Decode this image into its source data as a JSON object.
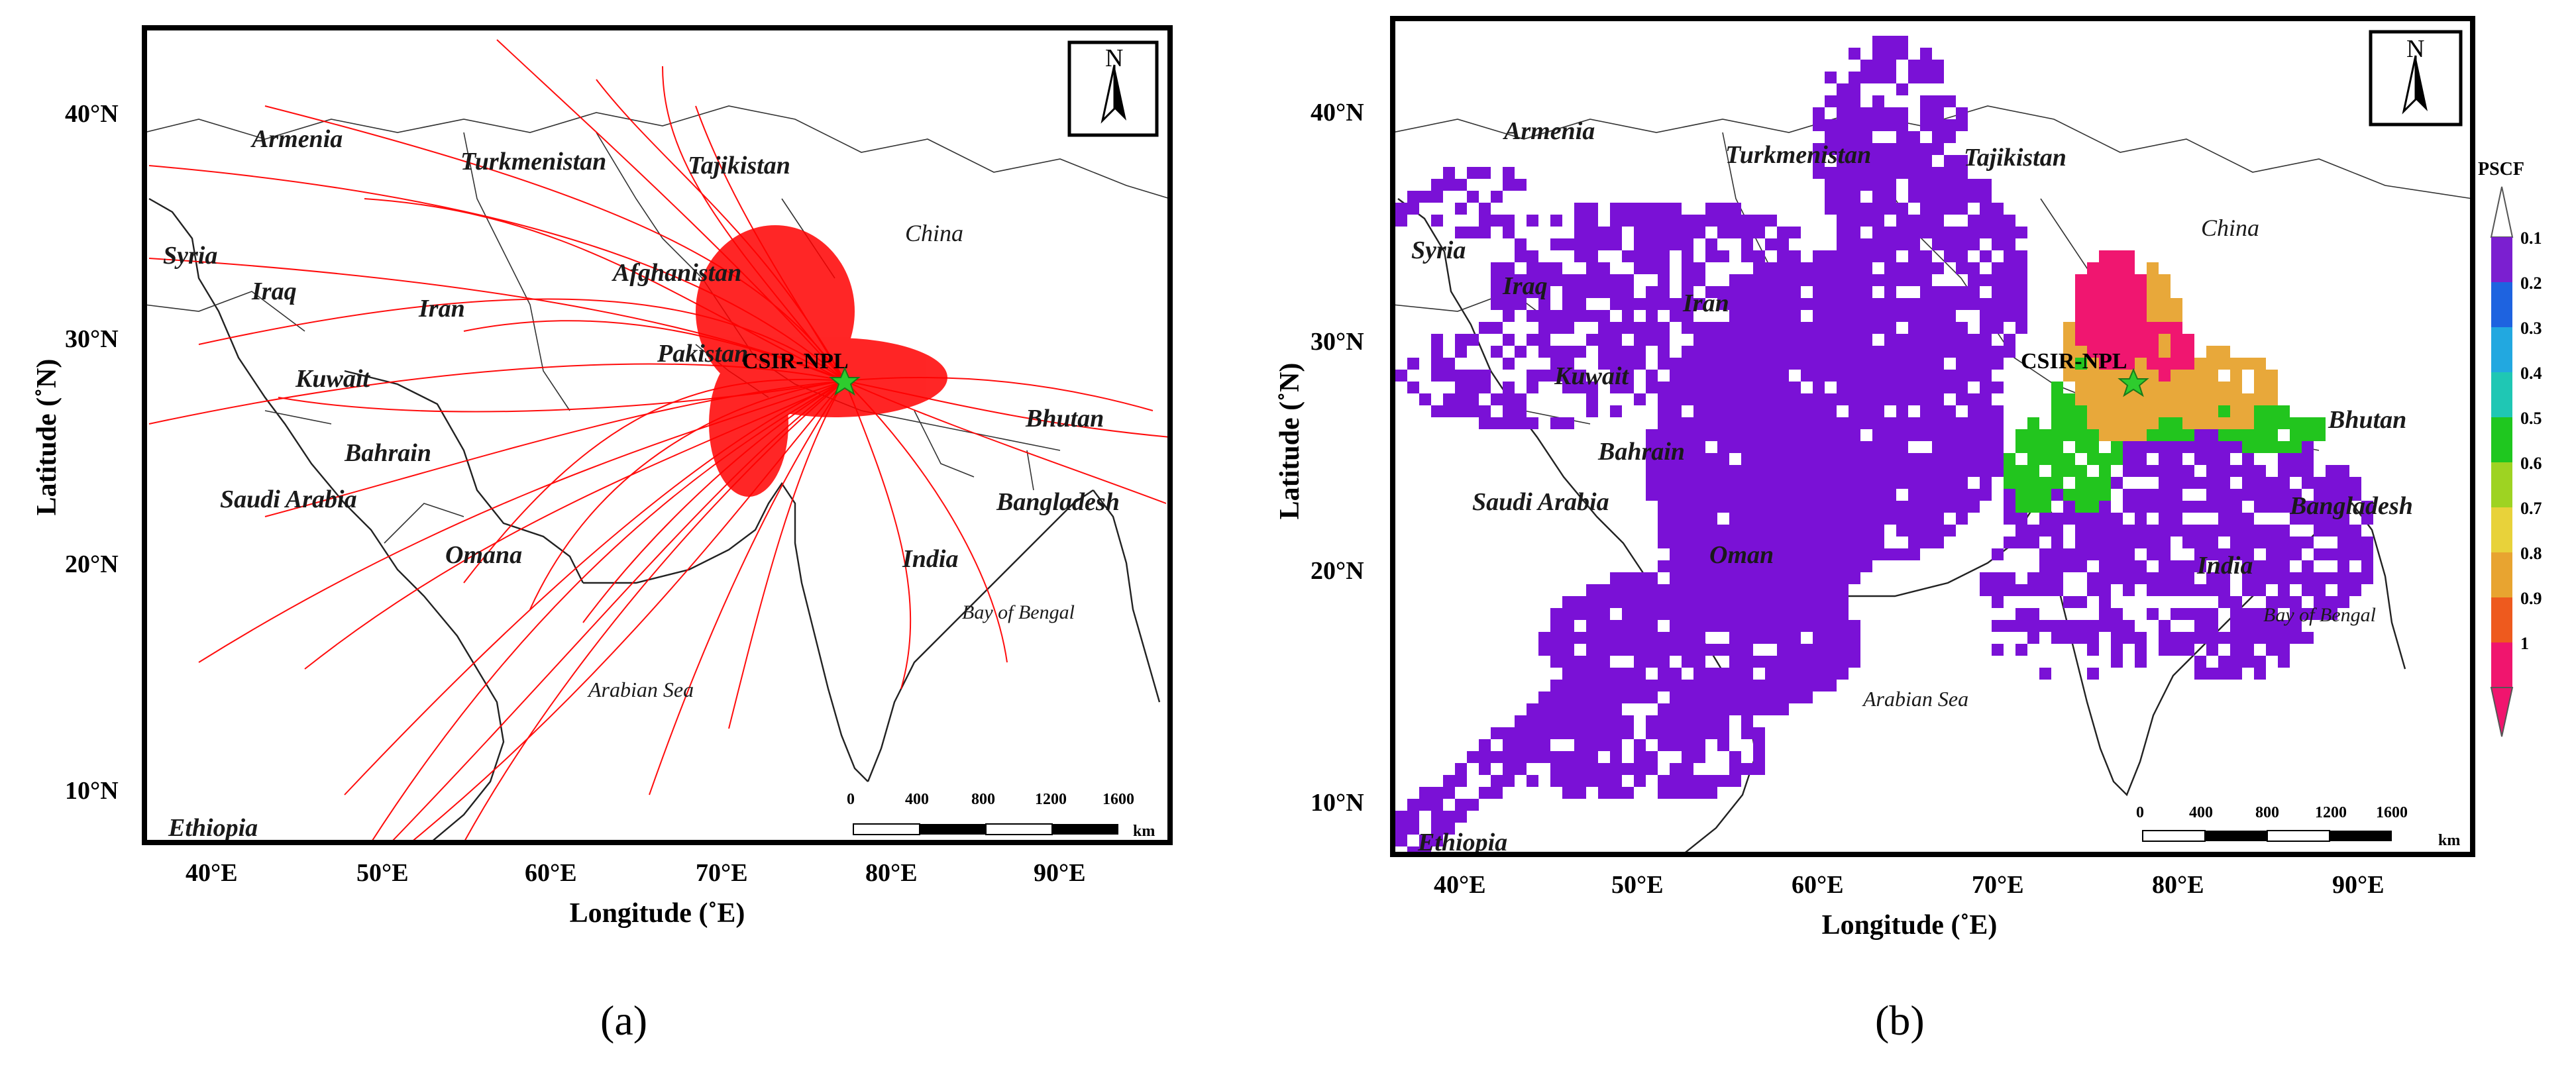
{
  "panels": [
    {
      "id": "a",
      "caption": "(a)",
      "xlabel": "Longitude (˚E)",
      "ylabel": "Latitude (˚N)",
      "north": "N",
      "station": "CSIR-NPL",
      "x_ticks": [
        "40°E",
        "50°E",
        "60°E",
        "70°E",
        "80°E",
        "90°E"
      ],
      "y_ticks": [
        "10°N",
        "20°N",
        "30°N",
        "40°N"
      ],
      "scale": {
        "labels": [
          "0",
          "400",
          "800",
          "1200",
          "1600"
        ],
        "unit": "km"
      },
      "countries": {
        "armenia": "Armenia",
        "turkmenistan": "Turkmenistan",
        "tajikistan": "Tajikistan",
        "syria": "Syria",
        "iraq": "Iraq",
        "iran": "Iran",
        "afghanistan": "Afghanistan",
        "china": "China",
        "pakistan": "Pakistan",
        "kuwait": "Kuwait",
        "bhutan": "Bhutan",
        "bahrain": "Bahrain",
        "saudi_arabia": "Saudi Arabia",
        "bangladesh": "Bangladesh",
        "omana": "Omana",
        "india": "India",
        "bay_of_bengal": "Bay of Bengal",
        "arabian_sea": "Arabian Sea",
        "ethiopia": "Ethiopia"
      }
    },
    {
      "id": "b",
      "caption": "(b)",
      "xlabel": "Longitude (˚E)",
      "ylabel": "Latitude (˚N)",
      "north": "N",
      "station": "CSIR-NPL",
      "x_ticks": [
        "40°E",
        "50°E",
        "60°E",
        "70°E",
        "80°E",
        "90°E"
      ],
      "y_ticks": [
        "10°N",
        "20°N",
        "30°N",
        "40°N"
      ],
      "scale": {
        "labels": [
          "0",
          "400",
          "800",
          "1200",
          "1600"
        ],
        "unit": "km"
      },
      "countries": {
        "armenia": "Armenia",
        "turkmenistan": "Turkmenistan",
        "tajikistan": "Tajikistan",
        "syria": "Syria",
        "iraq": "Iraq",
        "iran": "Iran",
        "china": "China",
        "kuwait": "Kuwait",
        "bhutan": "Bhutan",
        "bahrain": "Bahrain",
        "saudi_arabia": "Saudi Arabia",
        "bangladesh": "Bangladesh",
        "oman": "Oman",
        "india": "India",
        "bay_of_bengal": "Bay of Bengal",
        "arabian_sea": "Arabian Sea",
        "ethiopia": "Ethiopia"
      },
      "colorbar": {
        "title": "PSCF",
        "labels": [
          "0.1",
          "0.2",
          "0.3",
          "0.4",
          "0.5",
          "0.6",
          "0.7",
          "0.8",
          "0.9",
          "1"
        ],
        "colors": [
          "#7b1fd0",
          "#1e63e0",
          "#22a8e0",
          "#1fc7b4",
          "#1fc71f",
          "#9ed322",
          "#e8d23a",
          "#e8a430",
          "#ee5a1e",
          "#f0156e"
        ]
      }
    }
  ],
  "colors": {
    "trajectory": "#ff0000",
    "station_marker": "#2ecc2e",
    "pscf_low": "#7a11d6",
    "pscf_mid": "#22c51e",
    "pscf_high": "#e8a83a",
    "pscf_peak": "#f01670"
  }
}
